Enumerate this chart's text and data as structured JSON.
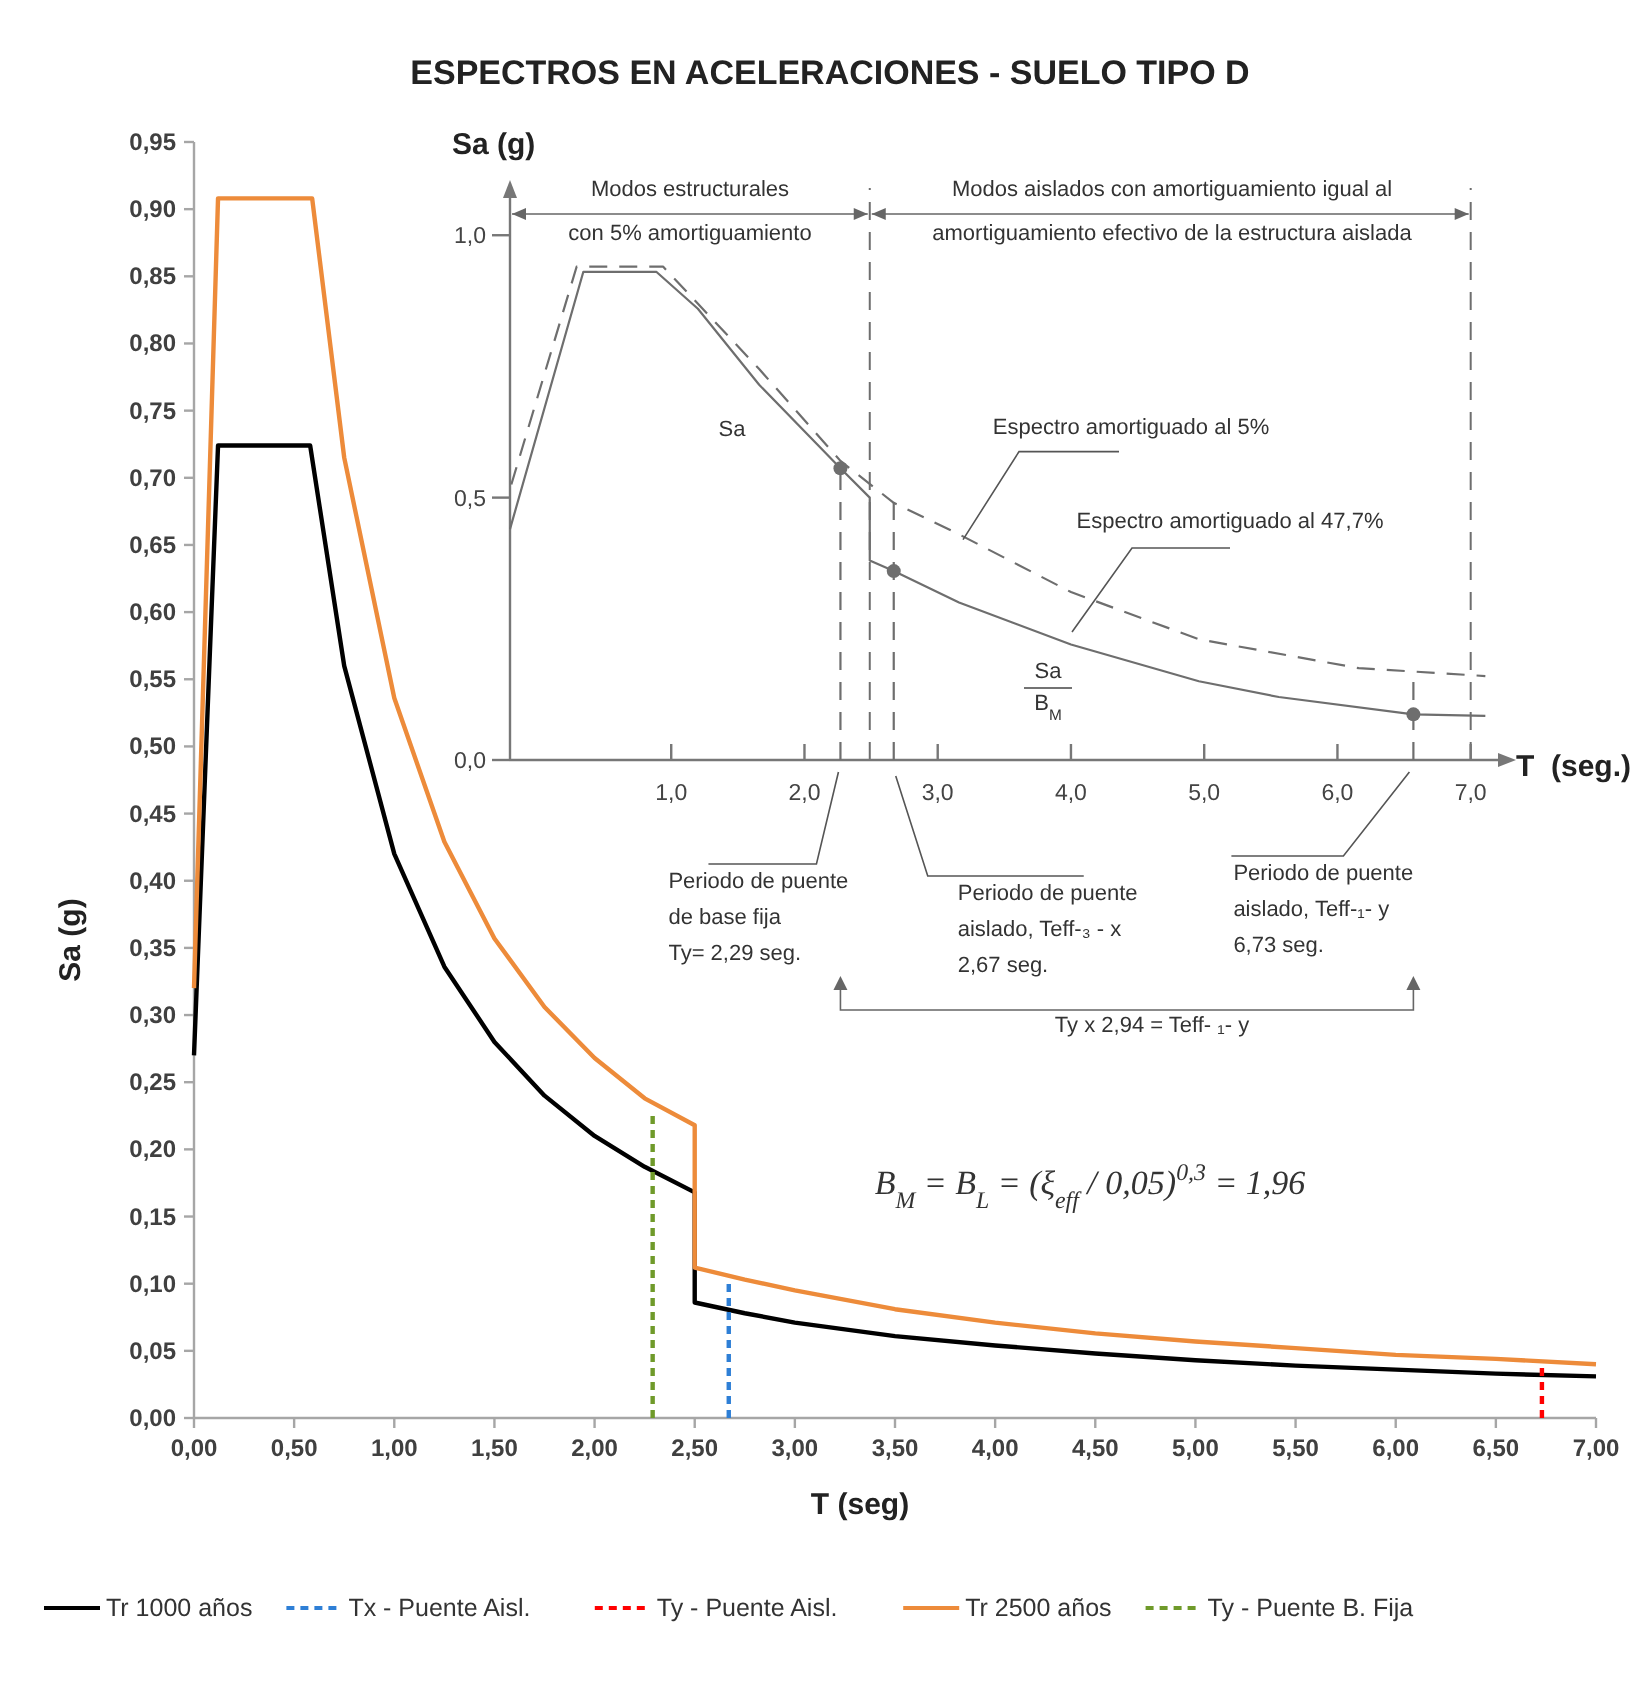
{
  "chart_data": [
    {
      "type": "line",
      "title": "ESPECTROS EN ACELERACIONES - SUELO TIPO D",
      "xlabel": "T (seg)",
      "ylabel": "Sa (g)",
      "xlim": [
        0,
        7
      ],
      "ylim": [
        0,
        0.95
      ],
      "xticks": [
        {
          "value": 0,
          "label": "0,00"
        },
        {
          "value": 0.5,
          "label": "0,50"
        },
        {
          "value": 1,
          "label": "1,00"
        },
        {
          "value": 1.5,
          "label": "1,50"
        },
        {
          "value": 2,
          "label": "2,00"
        },
        {
          "value": 2.5,
          "label": "2,50"
        },
        {
          "value": 3,
          "label": "3,00"
        },
        {
          "value": 3.5,
          "label": "3,50"
        },
        {
          "value": 4,
          "label": "4,00"
        },
        {
          "value": 4.5,
          "label": "4,50"
        },
        {
          "value": 5,
          "label": "5,00"
        },
        {
          "value": 5.5,
          "label": "5,50"
        },
        {
          "value": 6,
          "label": "6,00"
        },
        {
          "value": 6.5,
          "label": "6,50"
        },
        {
          "value": 7,
          "label": "7,00"
        }
      ],
      "yticks": [
        {
          "value": 0,
          "label": "0,00"
        },
        {
          "value": 0.05,
          "label": "0,05"
        },
        {
          "value": 0.1,
          "label": "0,10"
        },
        {
          "value": 0.15,
          "label": "0,15"
        },
        {
          "value": 0.2,
          "label": "0,20"
        },
        {
          "value": 0.25,
          "label": "0,25"
        },
        {
          "value": 0.3,
          "label": "0,30"
        },
        {
          "value": 0.35,
          "label": "0,35"
        },
        {
          "value": 0.4,
          "label": "0,40"
        },
        {
          "value": 0.45,
          "label": "0,45"
        },
        {
          "value": 0.5,
          "label": "0,50"
        },
        {
          "value": 0.55,
          "label": "0,55"
        },
        {
          "value": 0.6,
          "label": "0,60"
        },
        {
          "value": 0.65,
          "label": "0,65"
        },
        {
          "value": 0.7,
          "label": "0,70"
        },
        {
          "value": 0.75,
          "label": "0,75"
        },
        {
          "value": 0.8,
          "label": "0,80"
        },
        {
          "value": 0.85,
          "label": "0,85"
        },
        {
          "value": 0.9,
          "label": "0,90"
        },
        {
          "value": 0.95,
          "label": "0,95"
        }
      ],
      "legend": "bottom",
      "series": [
        {
          "name": "Tr 1000 años",
          "color": "#000000",
          "x": [
            0,
            0.12,
            0.58,
            0.75,
            1,
            1.25,
            1.5,
            1.75,
            2,
            2.25,
            2.5,
            2.5,
            2.75,
            3,
            3.5,
            4,
            4.5,
            5,
            5.5,
            6,
            6.5,
            7
          ],
          "values": [
            0.27,
            0.724,
            0.724,
            0.56,
            0.42,
            0.336,
            0.28,
            0.24,
            0.21,
            0.187,
            0.168,
            0.086,
            0.078,
            0.071,
            0.061,
            0.054,
            0.048,
            0.043,
            0.039,
            0.036,
            0.033,
            0.031
          ]
        },
        {
          "name": "Tx - Puente Aisl.",
          "color": "#2e7fd6",
          "line_style": "dashed",
          "x": [
            2.67,
            2.67
          ],
          "values": [
            0,
            0.104
          ]
        },
        {
          "name": "Ty - Puente Aisl.",
          "color": "#ff0000",
          "line_style": "dashed",
          "x": [
            6.73,
            6.73
          ],
          "values": [
            0,
            0.039
          ]
        },
        {
          "name": "Tr 2500 años",
          "color": "#ed8b3a",
          "x": [
            0,
            0.12,
            0.59,
            0.75,
            1,
            1.25,
            1.5,
            1.75,
            2,
            2.25,
            2.5,
            2.5,
            2.75,
            3,
            3.5,
            4,
            4.5,
            5,
            5.5,
            6,
            6.5,
            7
          ],
          "values": [
            0.32,
            0.908,
            0.908,
            0.715,
            0.536,
            0.429,
            0.357,
            0.306,
            0.268,
            0.238,
            0.218,
            0.112,
            0.103,
            0.095,
            0.081,
            0.071,
            0.063,
            0.057,
            0.052,
            0.047,
            0.044,
            0.04
          ]
        },
        {
          "name": "Ty - Puente B. Fija",
          "color": "#6f9a2a",
          "line_style": "dashed",
          "x": [
            2.29,
            2.29
          ],
          "values": [
            0,
            0.229
          ]
        }
      ],
      "annotations": [
        "B$_{M}$ = B$_{L}$ = (ξ$_{eff}$ / 0,05)$^{0,3}$ = 1,96"
      ]
    },
    {
      "type": "line",
      "xlabel": "T  (seg.)",
      "ylabel": "Sa (g)",
      "xlim": [
        -0.21,
        7.25
      ],
      "ylim": [
        0,
        1.09
      ],
      "xticks": [
        {
          "value": 1,
          "label": "1,0"
        },
        {
          "value": 2,
          "label": "2,0"
        },
        {
          "value": 3,
          "label": "3,0"
        },
        {
          "value": 4,
          "label": "4,0"
        },
        {
          "value": 5,
          "label": "5,0"
        },
        {
          "value": 6,
          "label": "6,0"
        },
        {
          "value": 7,
          "label": "7,0"
        }
      ],
      "yticks": [
        {
          "value": 0,
          "label": "0,0"
        },
        {
          "value": 0.5,
          "label": "0,5"
        },
        {
          "value": 1,
          "label": "1,0"
        }
      ],
      "series": [
        {
          "color": "#6e6e6e",
          "x": [
            -0.21,
            0.34,
            0.89,
            1.2,
            1.66,
            2.27,
            2.49,
            2.49,
            2.67,
            3.16,
            4.0,
            4.96,
            5.56,
            6.57,
            7.11
          ],
          "values": [
            0.44,
            0.93,
            0.93,
            0.86,
            0.715,
            0.556,
            0.5,
            0.38,
            0.36,
            0.3,
            0.22,
            0.15,
            0.12,
            0.087,
            0.084
          ]
        },
        {
          "color": "#6e6e6e",
          "line_style": "dashed",
          "x": [
            -0.2,
            0.29,
            0.94,
            1.66,
            2.27,
            2.67,
            3.16,
            4.0,
            4.96,
            6.16,
            7.11
          ],
          "values": [
            0.525,
            0.94,
            0.94,
            0.745,
            0.57,
            0.49,
            0.43,
            0.32,
            0.23,
            0.175,
            0.16
          ]
        },
        {
          "color": "#6e6e6e",
          "line_style": "dashed",
          "x": [
            2.27,
            2.27
          ],
          "values": [
            0,
            0.57
          ]
        },
        {
          "color": "#6e6e6e",
          "line_style": "dashed",
          "x": [
            2.67,
            2.67
          ],
          "values": [
            0,
            0.49
          ]
        },
        {
          "color": "#6e6e6e",
          "line_style": "dashed",
          "x": [
            6.57,
            6.57
          ],
          "values": [
            0,
            0.167
          ]
        },
        {
          "type": "scatter",
          "marker": "circle",
          "color": "#6e6e6e",
          "x": [
            2.27,
            2.67,
            6.57
          ],
          "values": [
            0.556,
            0.36,
            0.087
          ]
        }
      ],
      "ref_lines": [
        {
          "axis": "x",
          "value": 2.49,
          "color": "#6e6e6e",
          "line_style": "dashed"
        },
        {
          "axis": "x",
          "value": 7.0,
          "color": "#6e6e6e",
          "line_style": "dashed"
        }
      ],
      "annotations": [
        "Modos estructurales\ncon 5% amortiguamiento",
        "Modos aislados con amortiguamiento igual al\namortiguamiento efectivo de la estructura aislada",
        "Sa",
        {
          "text": "Espectro amortiguado al 5%",
          "x": 3.19,
          "y": 0.42
        },
        "Espectro amortiguado al 47,7%",
        "Sa\nB$_{M}$",
        {
          "text": "Periodo de puente\nde base fija\nTy= 2,29 seg.",
          "x": 2.27,
          "y": 0
        },
        {
          "text": "Periodo de puente\naislado, Teff-₃ - x\n2,67 seg.",
          "x": 2.67,
          "y": 0
        },
        {
          "text": "Periodo de puente\naislado, Teff-₁- y\n6,73 seg.",
          "x": 6.57,
          "y": 0
        },
        "Ty x 2,94 = Teff- ₁- y"
      ]
    }
  ]
}
